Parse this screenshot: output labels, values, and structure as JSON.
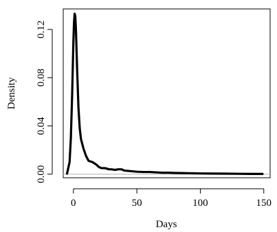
{
  "chart_data": {
    "type": "line",
    "title": "",
    "xlabel": "Days",
    "ylabel": "Density",
    "xlim": [
      -8,
      155
    ],
    "ylim": [
      -0.003,
      0.137
    ],
    "x_ticks": [
      0,
      50,
      100,
      150
    ],
    "x_tick_labels": [
      "0",
      "50",
      "100",
      "150"
    ],
    "y_ticks": [
      0.0,
      0.04,
      0.08,
      0.12
    ],
    "y_tick_labels": [
      "0.00",
      "0.04",
      "0.08",
      "0.12"
    ],
    "grid": false,
    "legend": "none",
    "baseline_y": 0,
    "series": [
      {
        "color": "#000000",
        "x": [
          -5,
          -3,
          -2,
          -1,
          0,
          0.5,
          1,
          1.5,
          2,
          3,
          4,
          5,
          6,
          8,
          10,
          12,
          15,
          18,
          20,
          22,
          25,
          28,
          30,
          33,
          35,
          38,
          40,
          45,
          50,
          55,
          60,
          65,
          70,
          75,
          80,
          85,
          90,
          95,
          100,
          110,
          120,
          130,
          140,
          149
        ],
        "y": [
          0.0005,
          0.01,
          0.03,
          0.065,
          0.11,
          0.126,
          0.133,
          0.131,
          0.12,
          0.085,
          0.055,
          0.038,
          0.029,
          0.021,
          0.015,
          0.011,
          0.01,
          0.008,
          0.006,
          0.005,
          0.005,
          0.004,
          0.004,
          0.0035,
          0.004,
          0.004,
          0.003,
          0.0025,
          0.002,
          0.0018,
          0.0018,
          0.0015,
          0.0012,
          0.0012,
          0.001,
          0.0009,
          0.0008,
          0.0007,
          0.0006,
          0.0005,
          0.0004,
          0.0003,
          0.0002,
          0.0002
        ]
      }
    ]
  }
}
